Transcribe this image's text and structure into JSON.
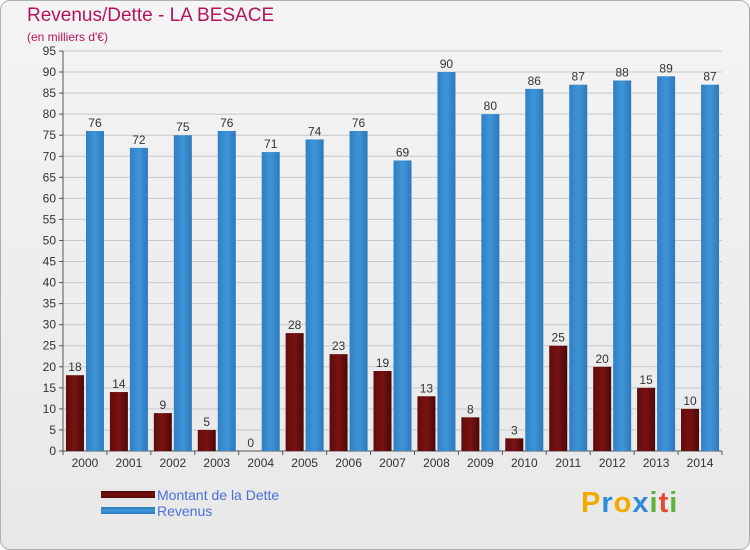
{
  "title": "Revenus/Dette - LA BESACE",
  "subtitle": "(en milliers d'€)",
  "logo": {
    "letters": [
      "P",
      "r",
      "o",
      "x",
      "i",
      "t",
      "i"
    ],
    "colors": [
      "#f2a900",
      "#2e8bd8",
      "#f2a900",
      "#2e8bd8",
      "#5bb33c",
      "#e8482f",
      "#5bb33c"
    ]
  },
  "colors": {
    "dette": "#7a1212",
    "revenus": "#3f95d8",
    "title": "#b4145e"
  },
  "chart_data": {
    "type": "bar",
    "categories": [
      "2000",
      "2001",
      "2002",
      "2003",
      "2004",
      "2005",
      "2006",
      "2007",
      "2008",
      "2009",
      "2010",
      "2011",
      "2012",
      "2013",
      "2014"
    ],
    "series": [
      {
        "name": "Montant de la Dette",
        "values": [
          18,
          14,
          9,
          5,
          0,
          28,
          23,
          19,
          13,
          8,
          3,
          25,
          20,
          15,
          10
        ]
      },
      {
        "name": "Revenus",
        "values": [
          76,
          72,
          75,
          76,
          71,
          74,
          76,
          69,
          90,
          80,
          86,
          87,
          88,
          89,
          87
        ]
      }
    ],
    "ylim": [
      0,
      95
    ],
    "yticks": [
      0,
      5,
      10,
      15,
      20,
      25,
      30,
      35,
      40,
      45,
      50,
      55,
      60,
      65,
      70,
      75,
      80,
      85,
      90,
      95
    ],
    "grid": true,
    "legend": "bottom-left"
  }
}
